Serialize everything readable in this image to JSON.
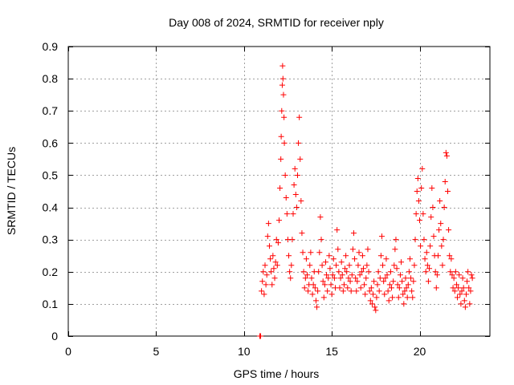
{
  "chart_data": {
    "type": "scatter",
    "title": "Day 008 of 2024, SRMTID for receiver nply",
    "xlabel": "GPS time / hours",
    "ylabel": "SRMTID / TECUs",
    "xlim": [
      0,
      24
    ],
    "ylim": [
      0,
      0.9
    ],
    "x_ticks": [
      0,
      5,
      10,
      15,
      20
    ],
    "x_tick_labels": [
      "0",
      "5",
      "10",
      "15",
      "20"
    ],
    "y_ticks": [
      0,
      0.1,
      0.2,
      0.3,
      0.4,
      0.5,
      0.6,
      0.7,
      0.8,
      0.9
    ],
    "y_tick_labels": [
      "0",
      "0.1",
      "0.2",
      "0.3",
      "0.4",
      "0.5",
      "0.6",
      "0.7",
      "0.8",
      "0.9"
    ],
    "grid": true,
    "marker": "+",
    "color": "#ff0000",
    "series": [
      {
        "name": "SRMTID",
        "points": [
          [
            10.9,
            0.0
          ],
          [
            10.95,
            0.0
          ],
          [
            11.0,
            0.14
          ],
          [
            11.05,
            0.17
          ],
          [
            11.1,
            0.2
          ],
          [
            11.15,
            0.13
          ],
          [
            11.2,
            0.22
          ],
          [
            11.25,
            0.16
          ],
          [
            11.3,
            0.19
          ],
          [
            11.35,
            0.31
          ],
          [
            11.4,
            0.35
          ],
          [
            11.45,
            0.28
          ],
          [
            11.5,
            0.24
          ],
          [
            11.55,
            0.2
          ],
          [
            11.6,
            0.16
          ],
          [
            11.65,
            0.25
          ],
          [
            11.7,
            0.21
          ],
          [
            11.75,
            0.18
          ],
          [
            11.8,
            0.23
          ],
          [
            11.85,
            0.3
          ],
          [
            11.9,
            0.22
          ],
          [
            11.95,
            0.29
          ],
          [
            12.0,
            0.36
          ],
          [
            12.05,
            0.46
          ],
          [
            12.1,
            0.55
          ],
          [
            12.12,
            0.62
          ],
          [
            12.15,
            0.7
          ],
          [
            12.18,
            0.78
          ],
          [
            12.2,
            0.84
          ],
          [
            12.22,
            0.8
          ],
          [
            12.25,
            0.75
          ],
          [
            12.28,
            0.68
          ],
          [
            12.3,
            0.6
          ],
          [
            12.35,
            0.5
          ],
          [
            12.4,
            0.43
          ],
          [
            12.45,
            0.38
          ],
          [
            12.5,
            0.3
          ],
          [
            12.55,
            0.25
          ],
          [
            12.6,
            0.2
          ],
          [
            12.65,
            0.18
          ],
          [
            12.7,
            0.22
          ],
          [
            12.75,
            0.3
          ],
          [
            12.8,
            0.38
          ],
          [
            12.85,
            0.47
          ],
          [
            12.9,
            0.52
          ],
          [
            12.95,
            0.44
          ],
          [
            13.0,
            0.4
          ],
          [
            13.05,
            0.5
          ],
          [
            13.1,
            0.6
          ],
          [
            13.15,
            0.68
          ],
          [
            13.2,
            0.55
          ],
          [
            13.25,
            0.42
          ],
          [
            13.3,
            0.32
          ],
          [
            13.35,
            0.26
          ],
          [
            13.4,
            0.2
          ],
          [
            13.45,
            0.15
          ],
          [
            13.5,
            0.18
          ],
          [
            13.55,
            0.24
          ],
          [
            13.6,
            0.19
          ],
          [
            13.65,
            0.14
          ],
          [
            13.7,
            0.16
          ],
          [
            13.75,
            0.22
          ],
          [
            13.8,
            0.26
          ],
          [
            13.85,
            0.18
          ],
          [
            13.9,
            0.13
          ],
          [
            13.95,
            0.16
          ],
          [
            14.0,
            0.2
          ],
          [
            14.05,
            0.15
          ],
          [
            14.1,
            0.11
          ],
          [
            14.15,
            0.09
          ],
          [
            14.2,
            0.14
          ],
          [
            14.25,
            0.2
          ],
          [
            14.3,
            0.26
          ],
          [
            14.35,
            0.37
          ],
          [
            14.4,
            0.3
          ],
          [
            14.45,
            0.22
          ],
          [
            14.5,
            0.17
          ],
          [
            14.55,
            0.12
          ],
          [
            14.6,
            0.16
          ],
          [
            14.65,
            0.23
          ],
          [
            14.7,
            0.19
          ],
          [
            14.75,
            0.14
          ],
          [
            14.8,
            0.18
          ],
          [
            14.85,
            0.25
          ],
          [
            14.9,
            0.21
          ],
          [
            14.95,
            0.16
          ],
          [
            15.0,
            0.13
          ],
          [
            15.05,
            0.19
          ],
          [
            15.1,
            0.24
          ],
          [
            15.15,
            0.18
          ],
          [
            15.2,
            0.15
          ],
          [
            15.25,
            0.22
          ],
          [
            15.3,
            0.33
          ],
          [
            15.35,
            0.27
          ],
          [
            15.4,
            0.2
          ],
          [
            15.45,
            0.15
          ],
          [
            15.5,
            0.18
          ],
          [
            15.55,
            0.23
          ],
          [
            15.6,
            0.19
          ],
          [
            15.65,
            0.14
          ],
          [
            15.7,
            0.16
          ],
          [
            15.75,
            0.21
          ],
          [
            15.8,
            0.25
          ],
          [
            15.85,
            0.2
          ],
          [
            15.9,
            0.15
          ],
          [
            15.95,
            0.18
          ],
          [
            16.0,
            0.22
          ],
          [
            16.05,
            0.17
          ],
          [
            16.1,
            0.14
          ],
          [
            16.15,
            0.19
          ],
          [
            16.2,
            0.27
          ],
          [
            16.25,
            0.32
          ],
          [
            16.3,
            0.24
          ],
          [
            16.35,
            0.18
          ],
          [
            16.4,
            0.14
          ],
          [
            16.45,
            0.17
          ],
          [
            16.5,
            0.22
          ],
          [
            16.55,
            0.26
          ],
          [
            16.6,
            0.19
          ],
          [
            16.65,
            0.15
          ],
          [
            16.7,
            0.2
          ],
          [
            16.75,
            0.25
          ],
          [
            16.8,
            0.21
          ],
          [
            16.85,
            0.16
          ],
          [
            16.9,
            0.13
          ],
          [
            16.95,
            0.18
          ],
          [
            17.0,
            0.22
          ],
          [
            17.05,
            0.27
          ],
          [
            17.1,
            0.2
          ],
          [
            17.15,
            0.14
          ],
          [
            17.2,
            0.11
          ],
          [
            17.25,
            0.15
          ],
          [
            17.3,
            0.1
          ],
          [
            17.35,
            0.13
          ],
          [
            17.4,
            0.17
          ],
          [
            17.45,
            0.09
          ],
          [
            17.5,
            0.08
          ],
          [
            17.55,
            0.12
          ],
          [
            17.6,
            0.16
          ],
          [
            17.65,
            0.2
          ],
          [
            17.7,
            0.14
          ],
          [
            17.75,
            0.18
          ],
          [
            17.8,
            0.25
          ],
          [
            17.85,
            0.31
          ],
          [
            17.9,
            0.22
          ],
          [
            17.95,
            0.17
          ],
          [
            18.0,
            0.13
          ],
          [
            18.05,
            0.18
          ],
          [
            18.1,
            0.24
          ],
          [
            18.15,
            0.19
          ],
          [
            18.2,
            0.14
          ],
          [
            18.25,
            0.11
          ],
          [
            18.3,
            0.16
          ],
          [
            18.35,
            0.2
          ],
          [
            18.4,
            0.15
          ],
          [
            18.45,
            0.12
          ],
          [
            18.5,
            0.17
          ],
          [
            18.55,
            0.22
          ],
          [
            18.6,
            0.27
          ],
          [
            18.65,
            0.3
          ],
          [
            18.7,
            0.21
          ],
          [
            18.75,
            0.16
          ],
          [
            18.8,
            0.12
          ],
          [
            18.85,
            0.15
          ],
          [
            18.9,
            0.19
          ],
          [
            18.95,
            0.23
          ],
          [
            19.0,
            0.17
          ],
          [
            19.05,
            0.13
          ],
          [
            19.1,
            0.1
          ],
          [
            19.15,
            0.14
          ],
          [
            19.2,
            0.18
          ],
          [
            19.25,
            0.15
          ],
          [
            19.3,
            0.12
          ],
          [
            19.35,
            0.16
          ],
          [
            19.4,
            0.2
          ],
          [
            19.45,
            0.24
          ],
          [
            19.5,
            0.18
          ],
          [
            19.55,
            0.14
          ],
          [
            19.6,
            0.12
          ],
          [
            19.65,
            0.17
          ],
          [
            19.7,
            0.22
          ],
          [
            19.75,
            0.3
          ],
          [
            19.8,
            0.38
          ],
          [
            19.85,
            0.45
          ],
          [
            19.9,
            0.49
          ],
          [
            19.95,
            0.42
          ],
          [
            20.0,
            0.36
          ],
          [
            20.05,
            0.28
          ],
          [
            20.1,
            0.46
          ],
          [
            20.15,
            0.52
          ],
          [
            20.2,
            0.38
          ],
          [
            20.25,
            0.3
          ],
          [
            20.3,
            0.24
          ],
          [
            20.35,
            0.2
          ],
          [
            20.4,
            0.26
          ],
          [
            20.45,
            0.22
          ],
          [
            20.5,
            0.17
          ],
          [
            20.55,
            0.21
          ],
          [
            20.6,
            0.28
          ],
          [
            20.65,
            0.37
          ],
          [
            20.7,
            0.46
          ],
          [
            20.75,
            0.4
          ],
          [
            20.8,
            0.31
          ],
          [
            20.85,
            0.25
          ],
          [
            20.9,
            0.2
          ],
          [
            20.95,
            0.15
          ],
          [
            21.0,
            0.19
          ],
          [
            21.05,
            0.25
          ],
          [
            21.1,
            0.33
          ],
          [
            21.15,
            0.42
          ],
          [
            21.2,
            0.35
          ],
          [
            21.25,
            0.28
          ],
          [
            21.3,
            0.22
          ],
          [
            21.35,
            0.3
          ],
          [
            21.4,
            0.4
          ],
          [
            21.45,
            0.48
          ],
          [
            21.5,
            0.57
          ],
          [
            21.55,
            0.56
          ],
          [
            21.6,
            0.45
          ],
          [
            21.65,
            0.33
          ],
          [
            21.7,
            0.25
          ],
          [
            21.75,
            0.2
          ],
          [
            21.8,
            0.24
          ],
          [
            21.85,
            0.19
          ],
          [
            21.9,
            0.15
          ],
          [
            21.95,
            0.18
          ],
          [
            22.0,
            0.14
          ],
          [
            22.05,
            0.2
          ],
          [
            22.1,
            0.16
          ],
          [
            22.15,
            0.12
          ],
          [
            22.2,
            0.15
          ],
          [
            22.25,
            0.19
          ],
          [
            22.3,
            0.13
          ],
          [
            22.35,
            0.1
          ],
          [
            22.4,
            0.14
          ],
          [
            22.45,
            0.18
          ],
          [
            22.5,
            0.15
          ],
          [
            22.55,
            0.11
          ],
          [
            22.6,
            0.09
          ],
          [
            22.65,
            0.13
          ],
          [
            22.7,
            0.17
          ],
          [
            22.75,
            0.2
          ],
          [
            22.8,
            0.15
          ],
          [
            22.85,
            0.1
          ],
          [
            22.9,
            0.14
          ],
          [
            22.95,
            0.19
          ],
          [
            23.0,
            0.18
          ]
        ]
      }
    ]
  }
}
